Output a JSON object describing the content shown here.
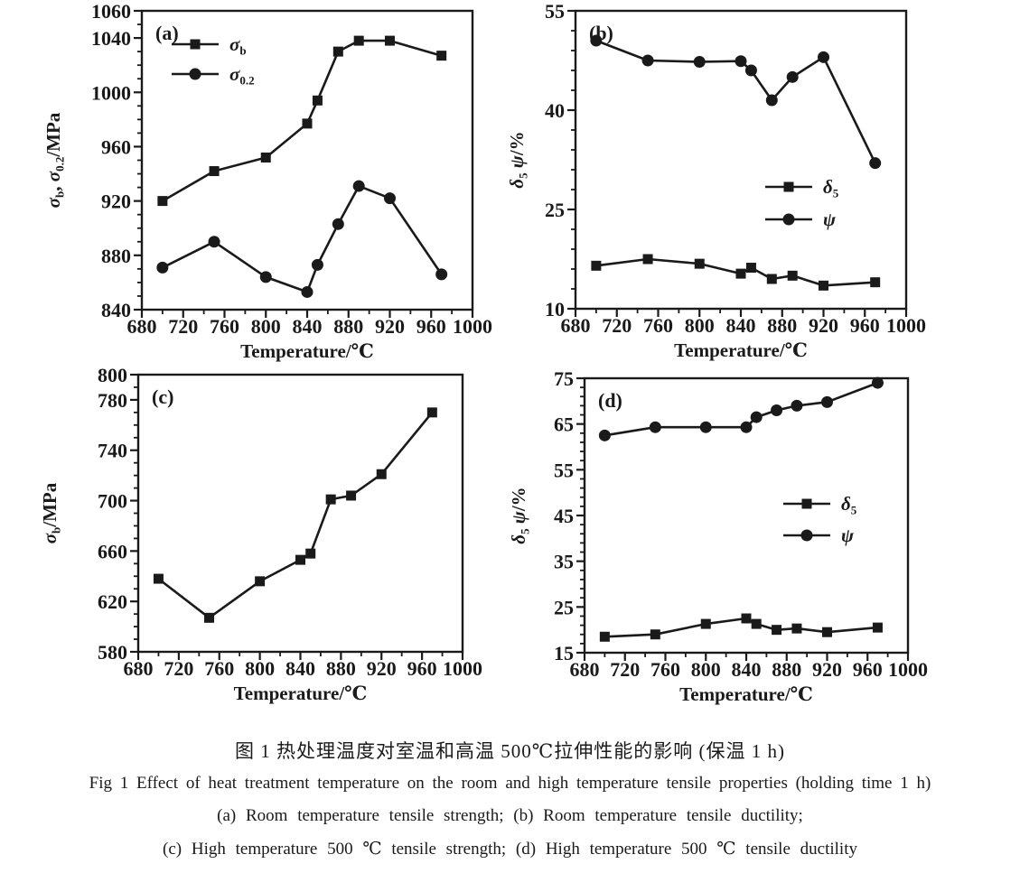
{
  "colors": {
    "ink": "#1a1a1a",
    "background": "#ffffff"
  },
  "chart_data": [
    {
      "id": "a",
      "type": "line",
      "panel_label": "(a)",
      "xlabel": "Temperature/℃",
      "ylabel": "σ~b~, σ~0.2~/MPa",
      "xlim": [
        680,
        1000
      ],
      "ylim": [
        840,
        1060
      ],
      "x_ticks": [
        680,
        720,
        760,
        800,
        840,
        880,
        920,
        960,
        1000
      ],
      "x_minor_step": 20,
      "y_ticks": [
        840,
        880,
        920,
        960,
        1000,
        1040,
        1060
      ],
      "y_minor_step": 10,
      "grid": false,
      "x": [
        700,
        750,
        800,
        840,
        850,
        870,
        890,
        920,
        970
      ],
      "series": [
        {
          "name": "σ~b~",
          "marker": "square",
          "values": [
            920,
            942,
            952,
            977,
            994,
            1030,
            1038,
            1038,
            1027
          ]
        },
        {
          "name": "σ~0.2~",
          "marker": "circle",
          "values": [
            871,
            890,
            864,
            853,
            873,
            903,
            931,
            922,
            866
          ]
        }
      ],
      "legend_position": "top-left"
    },
    {
      "id": "b",
      "type": "line",
      "panel_label": "(b)",
      "xlabel": "Temperature/℃",
      "ylabel": "δ~5~ ψ/%",
      "xlim": [
        680,
        1000
      ],
      "ylim": [
        10,
        55
      ],
      "x_ticks": [
        680,
        720,
        760,
        800,
        840,
        880,
        920,
        960,
        1000
      ],
      "x_minor_step": 20,
      "y_ticks": [
        10,
        25,
        40,
        55
      ],
      "y_minor_step": 3,
      "grid": false,
      "x": [
        700,
        750,
        800,
        840,
        850,
        870,
        890,
        920,
        970
      ],
      "series": [
        {
          "name": "δ~5~",
          "marker": "square",
          "values": [
            16.5,
            17.5,
            16.8,
            15.3,
            16.2,
            14.5,
            15.0,
            13.5,
            14.0
          ]
        },
        {
          "name": "ψ",
          "marker": "circle",
          "values": [
            50.5,
            47.5,
            47.3,
            47.4,
            46.0,
            41.5,
            45.0,
            48.0,
            32.0
          ]
        }
      ],
      "legend_position": "mid-right"
    },
    {
      "id": "c",
      "type": "line",
      "panel_label": "(c)",
      "xlabel": "Temperature/℃",
      "ylabel": "σ~b~/MPa",
      "xlim": [
        680,
        1000
      ],
      "ylim": [
        580,
        800
      ],
      "x_ticks": [
        680,
        720,
        760,
        800,
        840,
        880,
        920,
        960,
        1000
      ],
      "x_minor_step": 20,
      "y_ticks": [
        580,
        620,
        660,
        700,
        740,
        780,
        800
      ],
      "y_minor_step": 10,
      "grid": false,
      "x": [
        700,
        750,
        800,
        840,
        850,
        870,
        890,
        920,
        970
      ],
      "series": [
        {
          "name": "σ~b~",
          "marker": "square",
          "values": [
            638,
            607,
            636,
            653,
            658,
            701,
            704,
            721,
            770
          ]
        }
      ],
      "legend_position": null
    },
    {
      "id": "d",
      "type": "line",
      "panel_label": "(d)",
      "xlabel": "Temperature/℃",
      "ylabel": "δ~5~ ψ/%",
      "xlim": [
        680,
        1000
      ],
      "ylim": [
        15,
        75
      ],
      "x_ticks": [
        680,
        720,
        760,
        800,
        840,
        880,
        920,
        960,
        1000
      ],
      "x_minor_step": 20,
      "y_ticks": [
        15,
        25,
        35,
        45,
        55,
        65,
        75
      ],
      "y_minor_step": 2,
      "grid": false,
      "x": [
        700,
        750,
        800,
        840,
        850,
        870,
        890,
        920,
        970
      ],
      "series": [
        {
          "name": "δ~5~",
          "marker": "square",
          "values": [
            18.5,
            19.0,
            21.3,
            22.5,
            21.3,
            20.0,
            20.3,
            19.5,
            20.5
          ]
        },
        {
          "name": "ψ",
          "marker": "circle",
          "values": [
            62.5,
            64.3,
            64.3,
            64.3,
            66.5,
            68.0,
            69.0,
            69.8,
            74.0
          ]
        }
      ],
      "legend_position": "mid-right"
    }
  ],
  "caption": {
    "zh": "图 1  热处理温度对室温和高温 500℃拉伸性能的影响 (保温 1 h)",
    "en": "Fig 1   Effect of heat treatment temperature on the room and high temperature tensile properties (holding time 1 h)",
    "sub_ab": "(a) Room temperature tensile strength;  (b) Room temperature tensile ductility;",
    "sub_cd": "(c) High temperature 500 ℃ tensile strength;  (d) High temperature 500 ℃ tensile ductility"
  }
}
